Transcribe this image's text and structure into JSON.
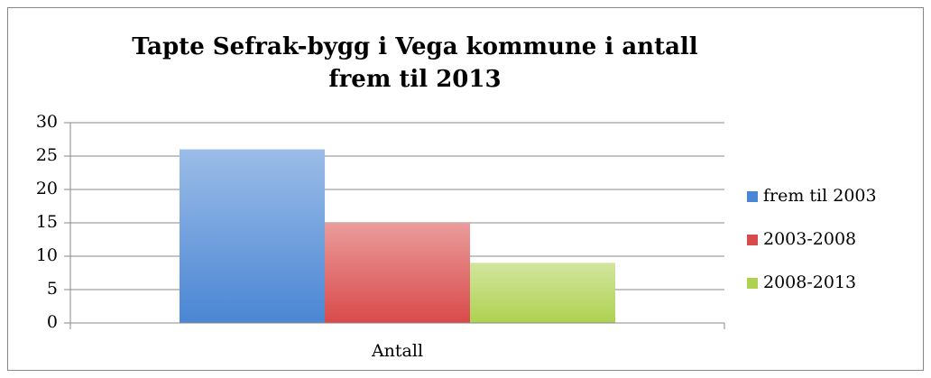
{
  "chart_data": {
    "type": "bar",
    "title": "Tapte Sefrak-bygg i Vega kommune i antall frem til 2013",
    "categories": [
      "Antall"
    ],
    "series": [
      {
        "name": "frem til 2003",
        "color": "#4a86d4",
        "values": [
          26
        ]
      },
      {
        "name": "2003-2008",
        "color": "#d94a4a",
        "values": [
          15
        ]
      },
      {
        "name": "2008-2013",
        "color": "#aed150",
        "values": [
          9
        ]
      }
    ],
    "ylim": [
      0,
      30
    ],
    "yticks": [
      0,
      5,
      10,
      15,
      20,
      25,
      30
    ],
    "grid": true,
    "legend": "right"
  }
}
